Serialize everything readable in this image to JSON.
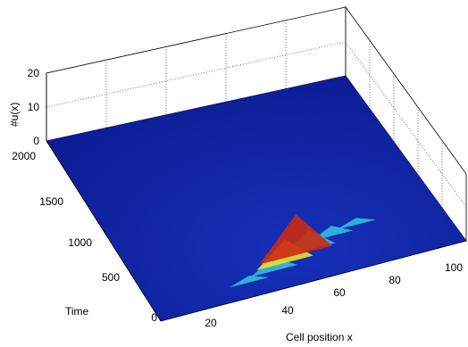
{
  "chart_data": {
    "type": "surface",
    "title": "",
    "xlabel": "Cell position x",
    "ylabel": "Time",
    "zlabel": "#u(x)",
    "xlim": [
      0,
      110
    ],
    "ylim": [
      0,
      2000
    ],
    "zlim": [
      0,
      20
    ],
    "x_ticks": [
      "20",
      "40",
      "60",
      "80",
      "100"
    ],
    "y_ticks": [
      "0",
      "500",
      "1000",
      "1500",
      "2000"
    ],
    "z_ticks": [
      "0",
      "10",
      "20"
    ],
    "grid": true,
    "colormap": "jet",
    "surface": {
      "baseline": 0,
      "peaks": [
        {
          "x": 55,
          "t": 300,
          "z": 12
        },
        {
          "x": 50,
          "t": 250,
          "z": 7
        },
        {
          "x": 60,
          "t": 320,
          "z": 6
        },
        {
          "x": 45,
          "t": 200,
          "z": 4
        },
        {
          "x": 70,
          "t": 400,
          "z": 3
        },
        {
          "x": 80,
          "t": 450,
          "z": 2
        },
        {
          "x": 35,
          "t": 150,
          "z": 2
        }
      ]
    }
  },
  "colors": {
    "floor": "#10209a",
    "peak_high": "#cc2a10",
    "peak_mid": "#e8e030",
    "peak_low": "#30c0e0"
  }
}
